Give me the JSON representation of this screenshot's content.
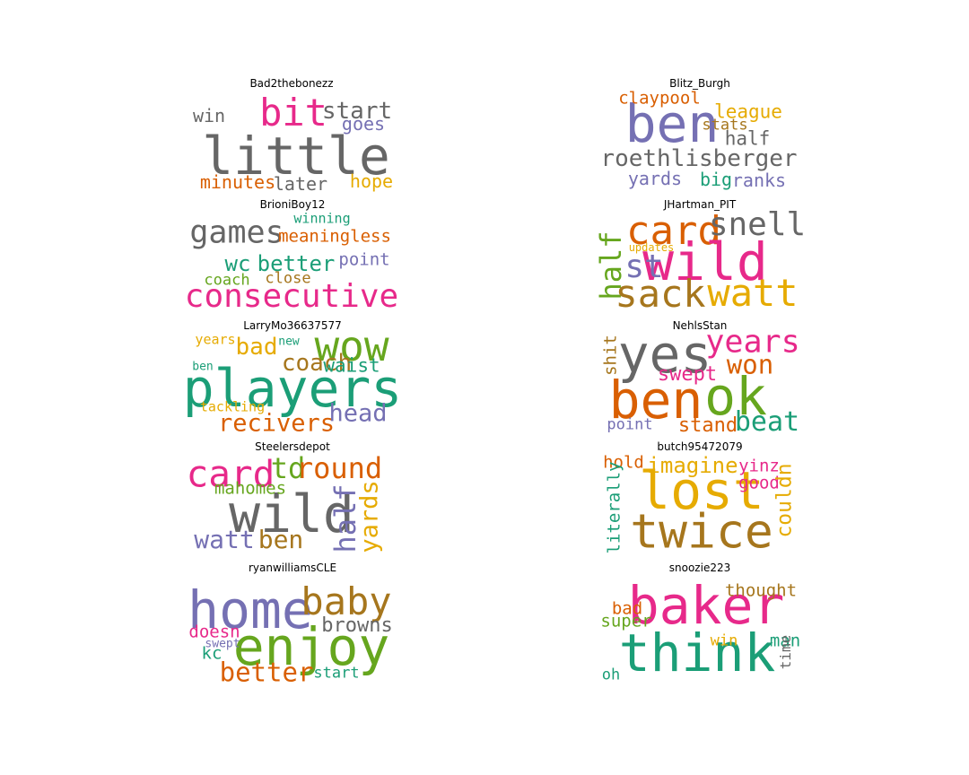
{
  "colors": {
    "green": "#1b9e77",
    "orange": "#d95f02",
    "purple": "#7570b3",
    "pink": "#e7298a",
    "lime": "#66a61e",
    "yellow": "#e6ab02",
    "brown": "#a6761d",
    "gray": "#666666"
  },
  "chart_data": {
    "type": "wordcloud",
    "panels": [
      {
        "title": "Bad2thebonezz",
        "words": [
          {
            "text": "little",
            "color": "gray",
            "size": 1.0
          },
          {
            "text": "bit",
            "color": "pink",
            "size": 0.72
          },
          {
            "text": "start",
            "color": "gray",
            "size": 0.45
          },
          {
            "text": "win",
            "color": "gray",
            "size": 0.34
          },
          {
            "text": "goes",
            "color": "purple",
            "size": 0.34
          },
          {
            "text": "minutes",
            "color": "orange",
            "size": 0.34
          },
          {
            "text": "later",
            "color": "gray",
            "size": 0.34
          },
          {
            "text": "hope",
            "color": "yellow",
            "size": 0.34
          }
        ]
      },
      {
        "title": "Blitz_Burgh",
        "words": [
          {
            "text": "ben",
            "color": "purple",
            "size": 1.0
          },
          {
            "text": "roethlisberger",
            "color": "gray",
            "size": 0.44
          },
          {
            "text": "claypool",
            "color": "orange",
            "size": 0.32
          },
          {
            "text": "league",
            "color": "yellow",
            "size": 0.36
          },
          {
            "text": "stats",
            "color": "brown",
            "size": 0.29
          },
          {
            "text": "half",
            "color": "gray",
            "size": 0.36
          },
          {
            "text": "yards",
            "color": "purple",
            "size": 0.34
          },
          {
            "text": "big",
            "color": "green",
            "size": 0.34
          },
          {
            "text": "ranks",
            "color": "purple",
            "size": 0.34
          }
        ]
      },
      {
        "title": "BrioniBoy12",
        "words": [
          {
            "text": "games",
            "color": "gray",
            "size": 0.6
          },
          {
            "text": "winning",
            "color": "green",
            "size": 0.26
          },
          {
            "text": "meaningless",
            "color": "orange",
            "size": 0.32
          },
          {
            "text": "wc",
            "color": "green",
            "size": 0.42
          },
          {
            "text": "better",
            "color": "green",
            "size": 0.42
          },
          {
            "text": "point",
            "color": "purple",
            "size": 0.32
          },
          {
            "text": "coach",
            "color": "lime",
            "size": 0.3
          },
          {
            "text": "close",
            "color": "brown",
            "size": 0.3
          },
          {
            "text": "consecutive",
            "color": "pink",
            "size": 0.62
          }
        ]
      },
      {
        "title": "JHartman_PIT",
        "words": [
          {
            "text": "card",
            "color": "orange",
            "size": 0.75
          },
          {
            "text": "snell",
            "color": "gray",
            "size": 0.62
          },
          {
            "text": "wild",
            "color": "pink",
            "size": 1.0
          },
          {
            "text": "half",
            "color": "lime",
            "size": 0.55,
            "vertical": true
          },
          {
            "text": "updates",
            "color": "yellow",
            "size": 0.2
          },
          {
            "text": "st",
            "color": "purple",
            "size": 0.62
          },
          {
            "text": "sack",
            "color": "brown",
            "size": 0.72
          },
          {
            "text": "watt",
            "color": "yellow",
            "size": 0.72
          }
        ]
      },
      {
        "title": "LarryMo36637577",
        "words": [
          {
            "text": "players",
            "color": "green",
            "size": 1.0
          },
          {
            "text": "wow",
            "color": "lime",
            "size": 0.8
          },
          {
            "text": "years",
            "color": "yellow",
            "size": 0.25
          },
          {
            "text": "bad",
            "color": "yellow",
            "size": 0.45
          },
          {
            "text": "new",
            "color": "green",
            "size": 0.22
          },
          {
            "text": "coach",
            "color": "brown",
            "size": 0.45
          },
          {
            "text": "waist",
            "color": "green",
            "size": 0.37
          },
          {
            "text": "ben",
            "color": "green",
            "size": 0.22
          },
          {
            "text": "tackling",
            "color": "yellow",
            "size": 0.25
          },
          {
            "text": "recivers",
            "color": "orange",
            "size": 0.47
          },
          {
            "text": "head",
            "color": "purple",
            "size": 0.47
          }
        ]
      },
      {
        "title": "NehlsStan",
        "words": [
          {
            "text": "yes",
            "color": "gray",
            "size": 1.0
          },
          {
            "text": "years",
            "color": "pink",
            "size": 0.6
          },
          {
            "text": "shit",
            "color": "brown",
            "size": 0.32,
            "vertical": true
          },
          {
            "text": "won",
            "color": "orange",
            "size": 0.5
          },
          {
            "text": "swept",
            "color": "pink",
            "size": 0.38
          },
          {
            "text": "ben",
            "color": "orange",
            "size": 1.0
          },
          {
            "text": "ok",
            "color": "lime",
            "size": 1.0
          },
          {
            "text": "point",
            "color": "purple",
            "size": 0.3
          },
          {
            "text": "stand",
            "color": "orange",
            "size": 0.38
          },
          {
            "text": "beat",
            "color": "green",
            "size": 0.52
          }
        ]
      },
      {
        "title": "Steelersdepot",
        "words": [
          {
            "text": "wild",
            "color": "gray",
            "size": 1.0
          },
          {
            "text": "card",
            "color": "pink",
            "size": 0.7
          },
          {
            "text": "td",
            "color": "lime",
            "size": 0.55
          },
          {
            "text": "round",
            "color": "orange",
            "size": 0.55
          },
          {
            "text": "mahomes",
            "color": "lime",
            "size": 0.32
          },
          {
            "text": "half",
            "color": "purple",
            "size": 0.55,
            "vertical": true
          },
          {
            "text": "yards",
            "color": "yellow",
            "size": 0.47,
            "vertical": true
          },
          {
            "text": "watt",
            "color": "purple",
            "size": 0.48
          },
          {
            "text": "ben",
            "color": "brown",
            "size": 0.48
          }
        ]
      },
      {
        "title": "butch95472079",
        "words": [
          {
            "text": "lost",
            "color": "yellow",
            "size": 1.0
          },
          {
            "text": "twice",
            "color": "brown",
            "size": 0.92
          },
          {
            "text": "hold",
            "color": "orange",
            "size": 0.32
          },
          {
            "text": "imagine",
            "color": "yellow",
            "size": 0.42
          },
          {
            "text": "yinz",
            "color": "pink",
            "size": 0.32
          },
          {
            "text": "good",
            "color": "pink",
            "size": 0.32
          },
          {
            "text": "literally",
            "color": "green",
            "size": 0.32,
            "vertical": true
          },
          {
            "text": "couldn",
            "color": "yellow",
            "size": 0.4,
            "vertical": true
          }
        ]
      },
      {
        "title": "ryanwilliamsCLE",
        "words": [
          {
            "text": "home",
            "color": "purple",
            "size": 1.0
          },
          {
            "text": "baby",
            "color": "brown",
            "size": 0.72
          },
          {
            "text": "enjoy",
            "color": "lime",
            "size": 1.0
          },
          {
            "text": "browns",
            "color": "gray",
            "size": 0.38
          },
          {
            "text": "doesn",
            "color": "pink",
            "size": 0.32
          },
          {
            "text": "swept",
            "color": "purple",
            "size": 0.22
          },
          {
            "text": "kc",
            "color": "green",
            "size": 0.32
          },
          {
            "text": "better",
            "color": "orange",
            "size": 0.5
          },
          {
            "text": "start",
            "color": "green",
            "size": 0.3
          }
        ]
      },
      {
        "title": "snoozie223",
        "words": [
          {
            "text": "baker",
            "color": "pink",
            "size": 1.0
          },
          {
            "text": "think",
            "color": "green",
            "size": 1.0
          },
          {
            "text": "thought",
            "color": "brown",
            "size": 0.32
          },
          {
            "text": "bad",
            "color": "orange",
            "size": 0.32
          },
          {
            "text": "super",
            "color": "lime",
            "size": 0.32
          },
          {
            "text": "win",
            "color": "yellow",
            "size": 0.3
          },
          {
            "text": "man",
            "color": "green",
            "size": 0.32
          },
          {
            "text": "time",
            "color": "gray",
            "size": 0.28,
            "vertical": true
          },
          {
            "text": "oh",
            "color": "green",
            "size": 0.3
          }
        ]
      }
    ]
  }
}
